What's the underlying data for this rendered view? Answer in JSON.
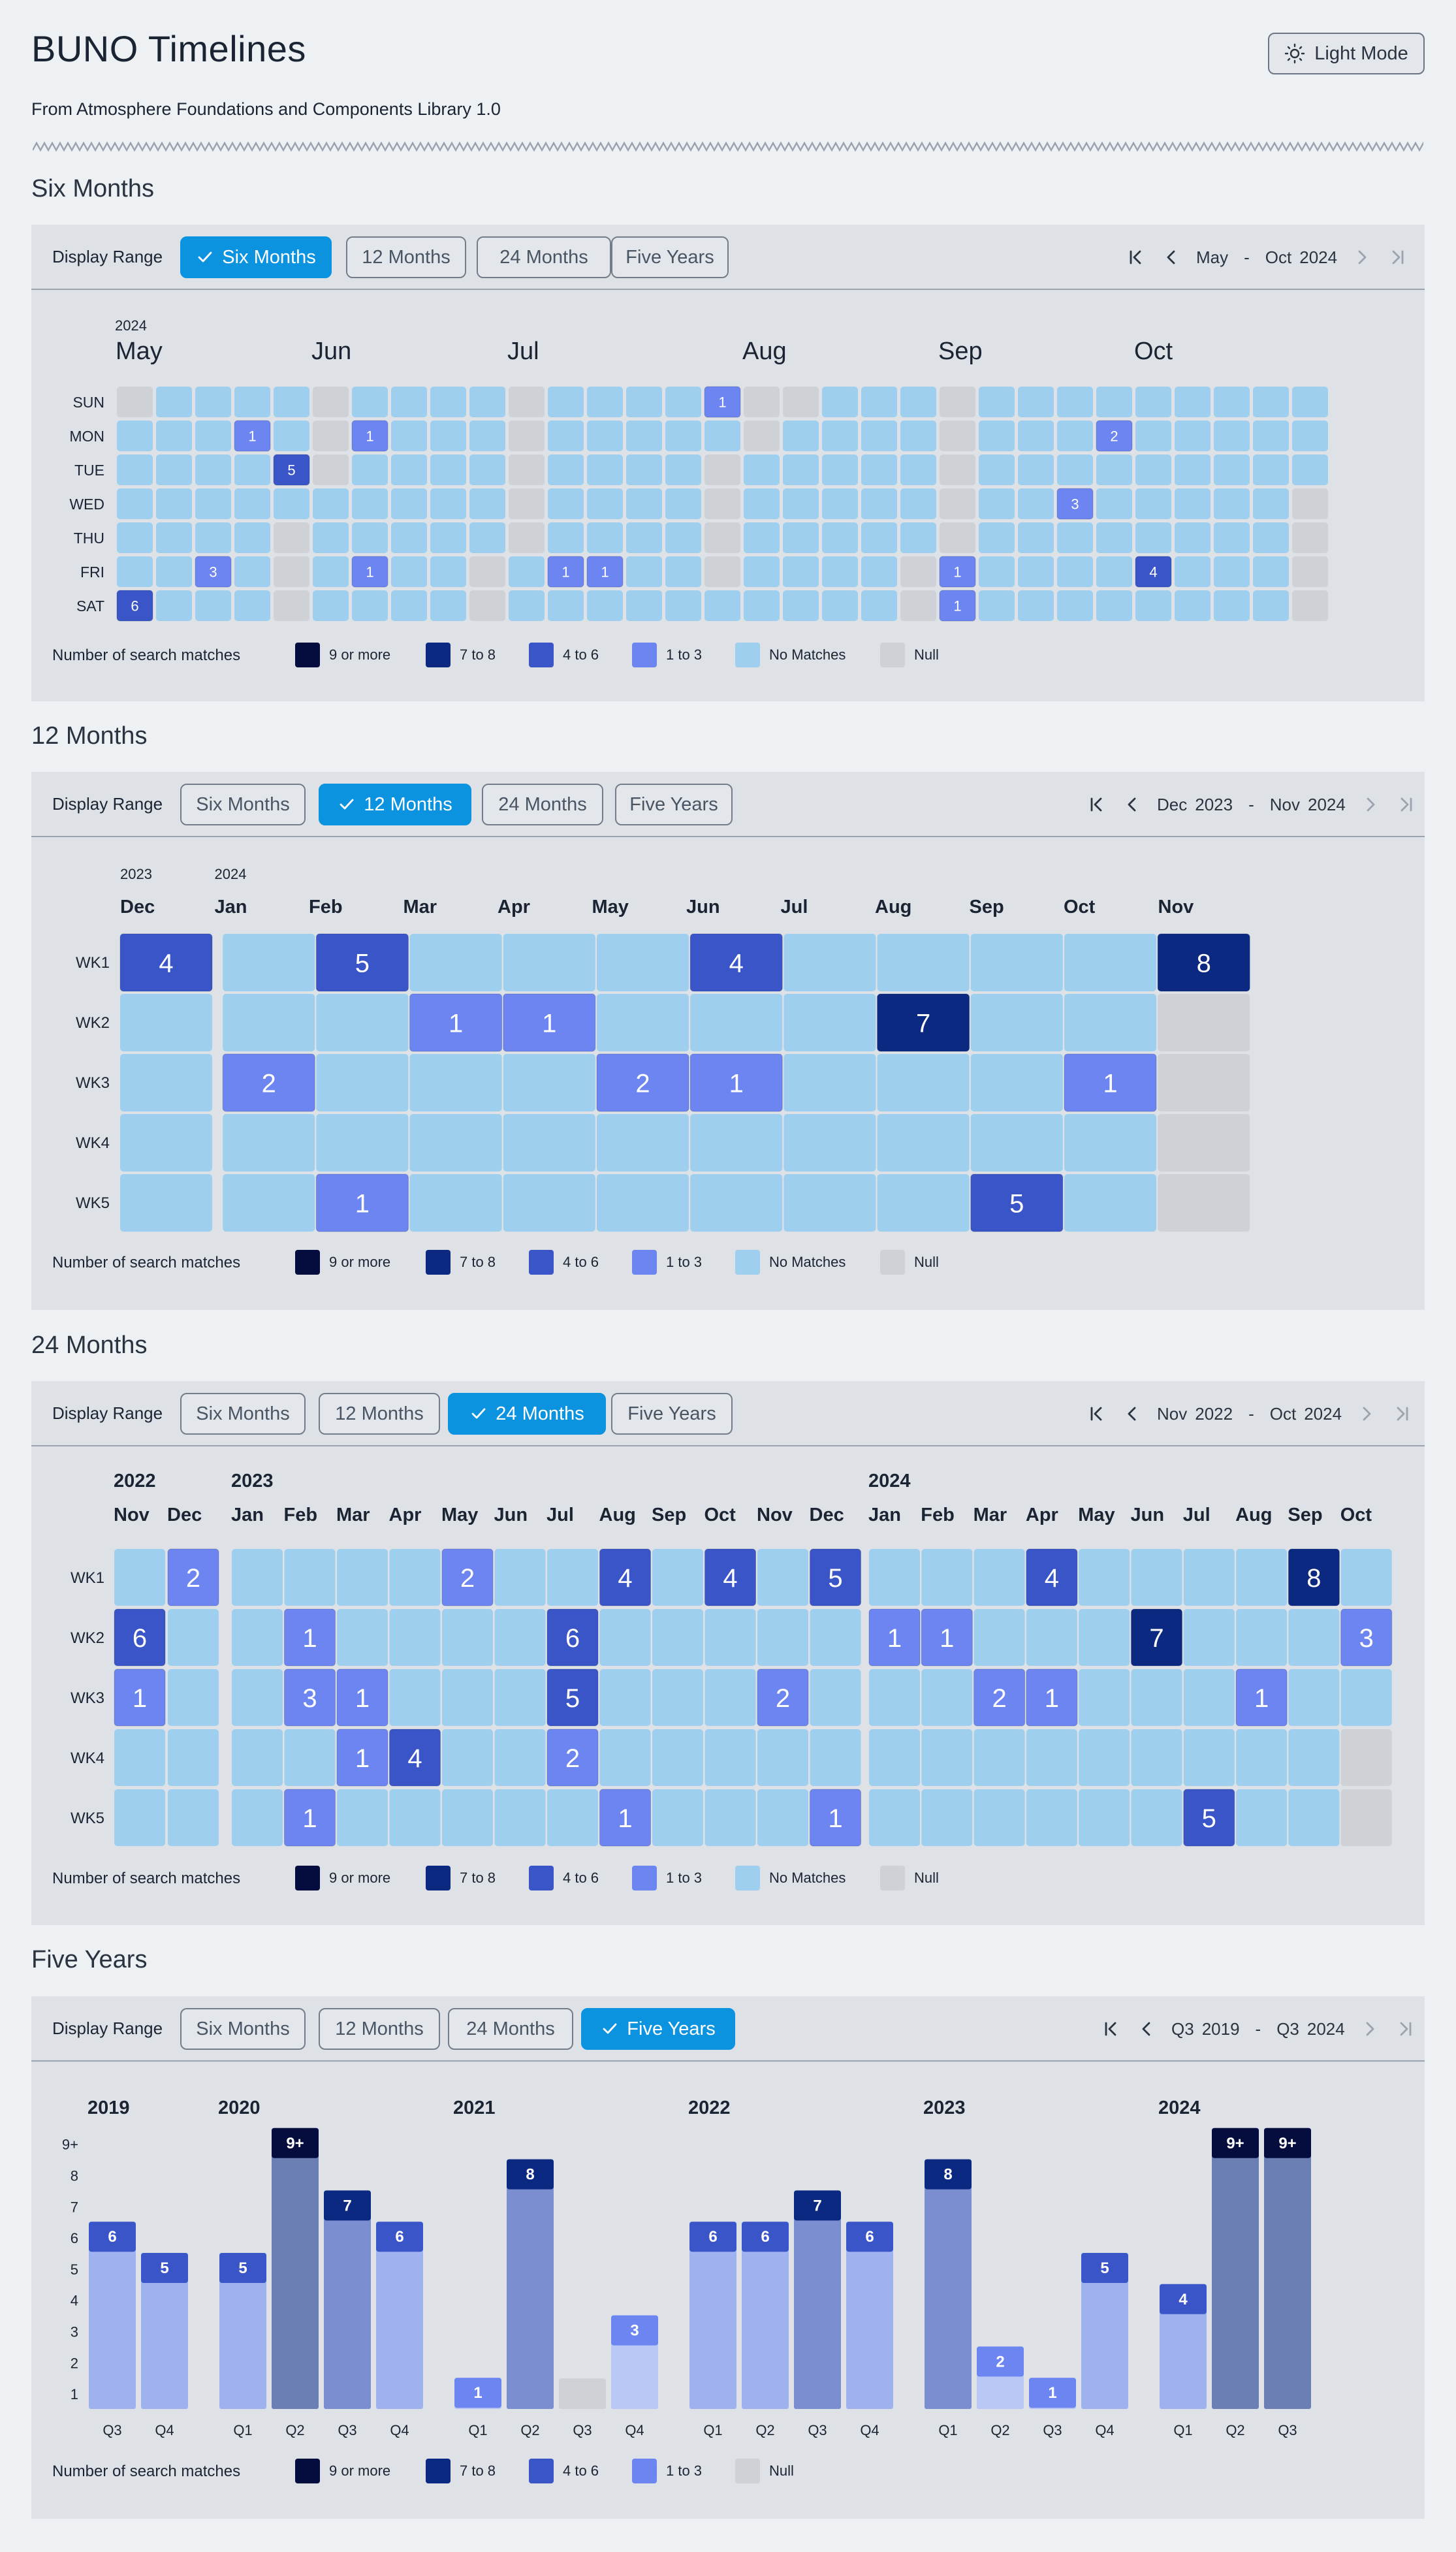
{
  "header": {
    "title": "BUNO Timelines",
    "subtitle": "From Atmosphere Foundations and Components Library 1.0",
    "mode_button": "Light Mode"
  },
  "colors": {
    "null": "#ced1d5",
    "none": "#9fcfef",
    "b1": "#6c85f0",
    "b4": "#3a55c8",
    "b7": "#0b2980",
    "b9": "#040d3d",
    "accent": "#0b93e0",
    "panel": "#dee2e6",
    "page": "#eef1f4"
  },
  "range_buttons": [
    "Six Months",
    "12 Months",
    "24 Months",
    "Five Years"
  ],
  "display_range_label": "Display Range",
  "legend": {
    "title": "Number of search matches",
    "items": [
      "9 or more",
      "7 to 8",
      "4 to 6",
      "1 to 3",
      "No Matches",
      "Null"
    ]
  },
  "six_months": {
    "title": "Six Months",
    "selected": 0,
    "nav": {
      "from_month": "May",
      "dash": "-",
      "to_month": "Oct",
      "year": "2024"
    },
    "year_label": "2024",
    "days": [
      "SUN",
      "MON",
      "TUE",
      "WED",
      "THU",
      "FRI",
      "SAT"
    ],
    "month_labels": [
      {
        "label": "May",
        "col": 0
      },
      {
        "label": "Jun",
        "col": 5
      },
      {
        "label": "Jul",
        "col": 10
      },
      {
        "label": "Aug",
        "col": 16
      },
      {
        "label": "Sep",
        "col": 21
      },
      {
        "label": "Oct",
        "col": 26
      }
    ],
    "num_cols": 31,
    "null_cells": [
      [
        0,
        0
      ],
      [
        5,
        0
      ],
      [
        10,
        0
      ],
      [
        16,
        0
      ],
      [
        17,
        0
      ],
      [
        21,
        0
      ],
      [
        5,
        1
      ],
      [
        10,
        1
      ],
      [
        16,
        1
      ],
      [
        21,
        1
      ],
      [
        5,
        2
      ],
      [
        10,
        2
      ],
      [
        15,
        2
      ],
      [
        21,
        2
      ],
      [
        10,
        3
      ],
      [
        15,
        3
      ],
      [
        21,
        3
      ],
      [
        30,
        3
      ],
      [
        4,
        4
      ],
      [
        10,
        4
      ],
      [
        15,
        4
      ],
      [
        21,
        4
      ],
      [
        30,
        4
      ],
      [
        4,
        5
      ],
      [
        9,
        5
      ],
      [
        15,
        5
      ],
      [
        20,
        5
      ],
      [
        30,
        5
      ],
      [
        4,
        6
      ],
      [
        9,
        6
      ],
      [
        20,
        6
      ],
      [
        30,
        6
      ]
    ],
    "values": [
      {
        "col": 15,
        "row": 0,
        "v": 1
      },
      {
        "col": 3,
        "row": 1,
        "v": 1
      },
      {
        "col": 6,
        "row": 1,
        "v": 1
      },
      {
        "col": 25,
        "row": 1,
        "v": 2
      },
      {
        "col": 4,
        "row": 2,
        "v": 5
      },
      {
        "col": 24,
        "row": 3,
        "v": 3
      },
      {
        "col": 2,
        "row": 5,
        "v": 3
      },
      {
        "col": 6,
        "row": 5,
        "v": 1
      },
      {
        "col": 11,
        "row": 5,
        "v": 1
      },
      {
        "col": 12,
        "row": 5,
        "v": 1
      },
      {
        "col": 21,
        "row": 5,
        "v": 1
      },
      {
        "col": 26,
        "row": 5,
        "v": 4
      },
      {
        "col": 0,
        "row": 6,
        "v": 6
      },
      {
        "col": 21,
        "row": 6,
        "v": 1
      }
    ]
  },
  "twelve_months": {
    "title": "12 Months",
    "selected": 1,
    "nav": {
      "from_month": "Dec",
      "from_year": "2023",
      "dash": "-",
      "to_month": "Nov",
      "to_year": "2024"
    },
    "year_labels": [
      {
        "label": "2023",
        "col": 0
      },
      {
        "label": "2024",
        "col": 1
      }
    ],
    "months": [
      "Dec",
      "Jan",
      "Feb",
      "Mar",
      "Apr",
      "May",
      "Jun",
      "Jul",
      "Aug",
      "Sep",
      "Oct",
      "Nov"
    ],
    "weeks": [
      "WK1",
      "WK2",
      "WK3",
      "WK4",
      "WK5"
    ],
    "null_cells": [
      [
        11,
        1
      ],
      [
        11,
        2
      ],
      [
        11,
        3
      ],
      [
        11,
        4
      ]
    ],
    "values": [
      {
        "col": 0,
        "row": 0,
        "v": 4
      },
      {
        "col": 2,
        "row": 0,
        "v": 5
      },
      {
        "col": 6,
        "row": 0,
        "v": 4
      },
      {
        "col": 11,
        "row": 0,
        "v": 8
      },
      {
        "col": 3,
        "row": 1,
        "v": 1
      },
      {
        "col": 4,
        "row": 1,
        "v": 1
      },
      {
        "col": 8,
        "row": 1,
        "v": 7
      },
      {
        "col": 1,
        "row": 2,
        "v": 2
      },
      {
        "col": 5,
        "row": 2,
        "v": 2
      },
      {
        "col": 6,
        "row": 2,
        "v": 1
      },
      {
        "col": 10,
        "row": 2,
        "v": 1
      },
      {
        "col": 2,
        "row": 4,
        "v": 1
      },
      {
        "col": 9,
        "row": 4,
        "v": 5
      }
    ]
  },
  "twentyfour_months": {
    "title": "24 Months",
    "selected": 2,
    "nav": {
      "from_month": "Nov",
      "from_year": "2022",
      "dash": "-",
      "to_month": "Oct",
      "to_year": "2024"
    },
    "year_labels": [
      {
        "label": "2022",
        "col": 0
      },
      {
        "label": "2023",
        "col": 2
      },
      {
        "label": "2024",
        "col": 14
      }
    ],
    "months": [
      "Nov",
      "Dec",
      "Jan",
      "Feb",
      "Mar",
      "Apr",
      "May",
      "Jun",
      "Jul",
      "Aug",
      "Sep",
      "Oct",
      "Nov",
      "Dec",
      "Jan",
      "Feb",
      "Mar",
      "Apr",
      "May",
      "Jun",
      "Jul",
      "Aug",
      "Sep",
      "Oct"
    ],
    "weeks": [
      "WK1",
      "WK2",
      "WK3",
      "WK4",
      "WK5"
    ],
    "null_cells": [
      [
        2,
        0
      ],
      [
        2,
        1
      ],
      [
        2,
        2
      ],
      [
        2,
        3
      ],
      [
        2,
        4
      ],
      [
        23,
        3
      ],
      [
        23,
        4
      ]
    ],
    "values": [
      {
        "col": 1,
        "row": 0,
        "v": 2
      },
      {
        "col": 6,
        "row": 0,
        "v": 2
      },
      {
        "col": 9,
        "row": 0,
        "v": 4
      },
      {
        "col": 11,
        "row": 0,
        "v": 4
      },
      {
        "col": 13,
        "row": 0,
        "v": 5
      },
      {
        "col": 17,
        "row": 0,
        "v": 4
      },
      {
        "col": 22,
        "row": 0,
        "v": 8
      },
      {
        "col": 0,
        "row": 1,
        "v": 6
      },
      {
        "col": 3,
        "row": 1,
        "v": 1
      },
      {
        "col": 8,
        "row": 1,
        "v": 6
      },
      {
        "col": 14,
        "row": 1,
        "v": 1
      },
      {
        "col": 15,
        "row": 1,
        "v": 1
      },
      {
        "col": 19,
        "row": 1,
        "v": 7
      },
      {
        "col": 23,
        "row": 1,
        "v": 3
      },
      {
        "col": 0,
        "row": 2,
        "v": 1
      },
      {
        "col": 3,
        "row": 2,
        "v": 3
      },
      {
        "col": 4,
        "row": 2,
        "v": 1
      },
      {
        "col": 8,
        "row": 2,
        "v": 5
      },
      {
        "col": 12,
        "row": 2,
        "v": 2
      },
      {
        "col": 16,
        "row": 2,
        "v": 2
      },
      {
        "col": 17,
        "row": 2,
        "v": 1
      },
      {
        "col": 21,
        "row": 2,
        "v": 1
      },
      {
        "col": 4,
        "row": 3,
        "v": 1
      },
      {
        "col": 5,
        "row": 3,
        "v": 4
      },
      {
        "col": 8,
        "row": 3,
        "v": 2
      },
      {
        "col": 3,
        "row": 4,
        "v": 1
      },
      {
        "col": 9,
        "row": 4,
        "v": 1
      },
      {
        "col": 13,
        "row": 4,
        "v": 1
      },
      {
        "col": 20,
        "row": 4,
        "v": 5
      }
    ]
  },
  "five_years": {
    "title": "Five Years",
    "selected": 3,
    "nav": {
      "from_q": "Q3",
      "from_year": "2019",
      "dash": "-",
      "to_q": "Q3",
      "to_year": "2024"
    },
    "y_ticks": [
      "1",
      "2",
      "3",
      "4",
      "5",
      "6",
      "7",
      "8",
      "9+"
    ],
    "legend_items": [
      "9 or more",
      "7 to 8",
      "4 to 6",
      "1 to 3",
      "Null"
    ],
    "years": [
      {
        "label": "2019",
        "bars": [
          {
            "q": "Q3",
            "v": 6,
            "label": "6"
          },
          {
            "q": "Q4",
            "v": 5,
            "label": "5"
          }
        ]
      },
      {
        "label": "2020",
        "bars": [
          {
            "q": "Q1",
            "v": 5,
            "label": "5"
          },
          {
            "q": "Q2",
            "v": 9,
            "label": "9+"
          },
          {
            "q": "Q3",
            "v": 7,
            "label": "7"
          },
          {
            "q": "Q4",
            "v": 6,
            "label": "6"
          }
        ]
      },
      {
        "label": "2021",
        "bars": [
          {
            "q": "Q1",
            "v": 1,
            "label": "1"
          },
          {
            "q": "Q2",
            "v": 8,
            "label": "8"
          },
          {
            "q": "Q3",
            "v": 0,
            "label": ""
          },
          {
            "q": "Q4",
            "v": 3,
            "label": "3"
          }
        ]
      },
      {
        "label": "2022",
        "bars": [
          {
            "q": "Q1",
            "v": 6,
            "label": "6"
          },
          {
            "q": "Q2",
            "v": 6,
            "label": "6"
          },
          {
            "q": "Q3",
            "v": 7,
            "label": "7"
          },
          {
            "q": "Q4",
            "v": 6,
            "label": "6"
          }
        ]
      },
      {
        "label": "2023",
        "bars": [
          {
            "q": "Q1",
            "v": 8,
            "label": "8"
          },
          {
            "q": "Q2",
            "v": 2,
            "label": "2"
          },
          {
            "q": "Q3",
            "v": 1,
            "label": "1"
          },
          {
            "q": "Q4",
            "v": 5,
            "label": "5"
          }
        ]
      },
      {
        "label": "2024",
        "bars": [
          {
            "q": "Q1",
            "v": 4,
            "label": "4"
          },
          {
            "q": "Q2",
            "v": 9,
            "label": "9+"
          },
          {
            "q": "Q3",
            "v": 9,
            "label": "9+"
          }
        ]
      }
    ]
  }
}
